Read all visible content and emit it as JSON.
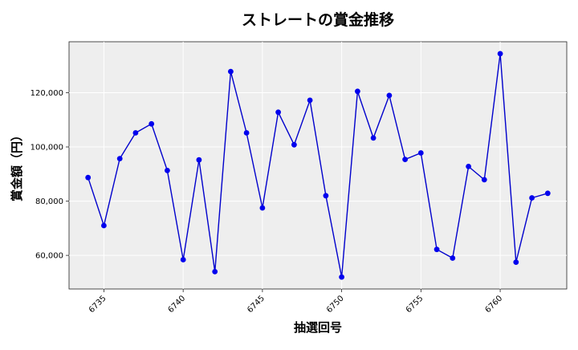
{
  "chart_data": {
    "type": "line",
    "title": "ストレートの賞金推移",
    "xlabel": "抽選回号",
    "ylabel": "賞金額（円）",
    "x": [
      6734,
      6735,
      6736,
      6737,
      6738,
      6739,
      6740,
      6741,
      6742,
      6743,
      6744,
      6745,
      6746,
      6747,
      6748,
      6749,
      6750,
      6751,
      6752,
      6753,
      6754,
      6755,
      6756,
      6757,
      6758,
      6759,
      6760,
      6761,
      6762,
      6763
    ],
    "series": [
      {
        "values": [
          88700,
          71000,
          95700,
          105200,
          108500,
          91300,
          58400,
          95200,
          54000,
          127800,
          105200,
          77500,
          112800,
          100800,
          117200,
          82000,
          52000,
          120500,
          103300,
          119000,
          95400,
          97800,
          62200,
          59000,
          92800,
          87900,
          134400,
          57500,
          81200,
          82900
        ]
      }
    ],
    "xlim": [
      6732.8,
      6764.2
    ],
    "ylim": [
      47600,
      138800
    ],
    "xticks": [
      6735,
      6740,
      6745,
      6750,
      6755,
      6760
    ],
    "xtick_labels": [
      "6735",
      "6740",
      "6745",
      "6750",
      "6755",
      "6760"
    ],
    "yticks": [
      60000,
      80000,
      100000,
      120000
    ],
    "ytick_labels": [
      "60,000",
      "80,000",
      "100,000",
      "120,000"
    ],
    "grid": true,
    "line_color": "#0000cc",
    "marker_color": "#0000ee",
    "plot_background": "#eeeeee"
  }
}
